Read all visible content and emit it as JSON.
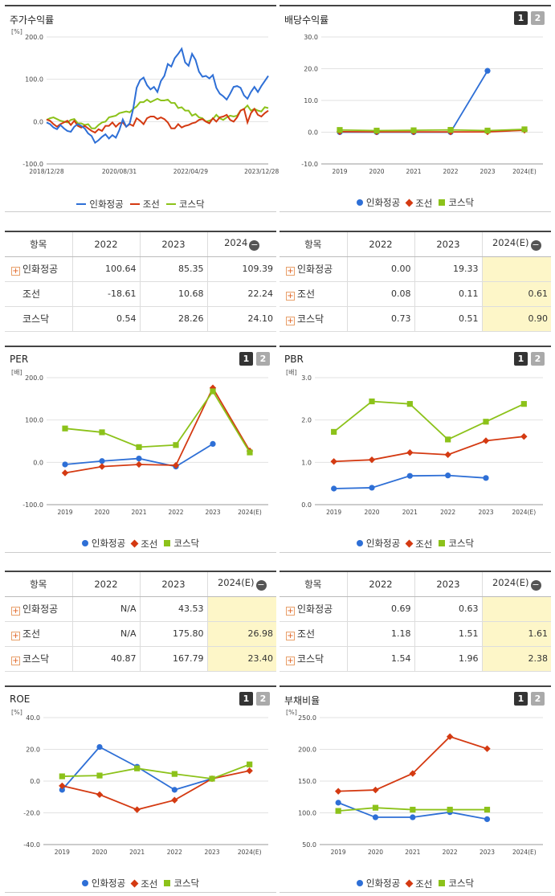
{
  "colors": {
    "blue": "#2e6fd6",
    "red": "#d43a12",
    "green": "#8cc21a"
  },
  "legend": [
    "인화정공",
    "조선",
    "코스닥"
  ],
  "paging": [
    "1",
    "2"
  ],
  "charts": {
    "stock": {
      "title": "주가수익률",
      "chart_data": {
        "type": "line",
        "unit": "[%]",
        "ylim": [
          -100,
          200
        ],
        "yticks": [
          "200.0",
          "100.0",
          "0.0",
          "-100.0"
        ],
        "xticks": [
          "2018/12/28",
          "2020/08/31",
          "2022/04/29",
          "2023/12/28"
        ],
        "xtick_pos": [
          0,
          0.328,
          0.65,
          0.97
        ],
        "series": [
          {
            "name": "인화정공",
            "color": "blue",
            "values": [
              -2,
              -6,
              -14,
              -18,
              -8,
              -16,
              -22,
              -24,
              -12,
              -6,
              -10,
              -16,
              -28,
              -34,
              -50,
              -44,
              -36,
              -30,
              -40,
              -32,
              -38,
              -20,
              5,
              -12,
              -4,
              30,
              80,
              98,
              104,
              86,
              76,
              82,
              70,
              96,
              108,
              136,
              130,
              150,
              160,
              172,
              140,
              132,
              160,
              146,
              118,
              106,
              108,
              102,
              110,
              80,
              66,
              60,
              52,
              66,
              82,
              84,
              80,
              62,
              54,
              70,
              82,
              70,
              84,
              96,
              108
            ]
          },
          {
            "name": "조선",
            "color": "red",
            "values": [
              5,
              2,
              -6,
              -12,
              -6,
              -2,
              2,
              -8,
              2,
              -10,
              -14,
              -10,
              -16,
              -22,
              -26,
              -18,
              -22,
              -10,
              -10,
              -2,
              -12,
              -4,
              -2,
              -12,
              -6,
              -10,
              8,
              2,
              -6,
              8,
              12,
              12,
              6,
              10,
              6,
              -2,
              -16,
              -16,
              -6,
              -14,
              -10,
              -8,
              -4,
              -2,
              4,
              6,
              0,
              -4,
              8,
              0,
              10,
              12,
              16,
              4,
              0,
              10,
              26,
              30,
              -2,
              20,
              30,
              16,
              12,
              20,
              26
            ]
          },
          {
            "name": "코스닥",
            "color": "green",
            "values": [
              4,
              8,
              10,
              6,
              2,
              0,
              -2,
              4,
              6,
              -4,
              -4,
              -8,
              -6,
              -16,
              -16,
              -8,
              -2,
              0,
              10,
              12,
              14,
              20,
              22,
              24,
              22,
              30,
              36,
              46,
              46,
              52,
              46,
              50,
              54,
              50,
              50,
              52,
              44,
              44,
              32,
              34,
              26,
              26,
              14,
              18,
              10,
              8,
              0,
              2,
              6,
              16,
              8,
              4,
              10,
              14,
              12,
              14,
              26,
              30,
              38,
              26,
              30,
              26,
              24,
              34,
              32
            ]
          }
        ]
      }
    },
    "dividend": {
      "title": "배당수익률",
      "chart_data": {
        "type": "line",
        "ylim": [
          -10,
          30
        ],
        "yticks": [
          "30.0",
          "20.0",
          "10.0",
          "0.0",
          "-10.0"
        ],
        "categories": [
          "2019",
          "2020",
          "2021",
          "2022",
          "2023",
          "2024(E)"
        ],
        "series": [
          {
            "name": "인화정공",
            "color": "blue",
            "marker": "circle",
            "values": [
              0.0,
              0.0,
              0.0,
              0.0,
              19.33,
              null
            ]
          },
          {
            "name": "조선",
            "color": "red",
            "marker": "diamond",
            "values": [
              0.15,
              0.1,
              0.1,
              0.08,
              0.11,
              0.61
            ]
          },
          {
            "name": "코스닥",
            "color": "green",
            "marker": "square",
            "values": [
              0.7,
              0.5,
              0.6,
              0.73,
              0.51,
              0.9
            ]
          }
        ]
      }
    },
    "per": {
      "title": "PER",
      "chart_data": {
        "type": "line",
        "unit": "[배]",
        "ylim": [
          -100,
          200
        ],
        "yticks": [
          "200.0",
          "100.0",
          "0.0",
          "-100.0"
        ],
        "categories": [
          "2019",
          "2020",
          "2021",
          "2022",
          "2023",
          "2024(E)"
        ],
        "series": [
          {
            "name": "인화정공",
            "color": "blue",
            "marker": "circle",
            "values": [
              -5,
              3,
              9,
              -10,
              43.53,
              null
            ]
          },
          {
            "name": "조선",
            "color": "red",
            "marker": "diamond",
            "values": [
              -25,
              -10,
              -5,
              -7,
              175.8,
              26.98
            ]
          },
          {
            "name": "코스닥",
            "color": "green",
            "marker": "square",
            "values": [
              80,
              71,
              36,
              40.87,
              167.79,
              23.4
            ]
          }
        ]
      }
    },
    "pbr": {
      "title": "PBR",
      "chart_data": {
        "type": "line",
        "unit": "[배]",
        "ylim": [
          0,
          3
        ],
        "yticks": [
          "3.0",
          "2.0",
          "1.0",
          "0.0"
        ],
        "categories": [
          "2019",
          "2020",
          "2021",
          "2022",
          "2023",
          "2024(E)"
        ],
        "series": [
          {
            "name": "인화정공",
            "color": "blue",
            "marker": "circle",
            "values": [
              0.38,
              0.4,
              0.68,
              0.69,
              0.63,
              null
            ]
          },
          {
            "name": "조선",
            "color": "red",
            "marker": "diamond",
            "values": [
              1.02,
              1.06,
              1.23,
              1.18,
              1.51,
              1.61
            ]
          },
          {
            "name": "코스닥",
            "color": "green",
            "marker": "square",
            "values": [
              1.72,
              2.44,
              2.38,
              1.54,
              1.96,
              2.38
            ]
          }
        ]
      }
    },
    "roe": {
      "title": "ROE",
      "chart_data": {
        "type": "line",
        "unit": "[%]",
        "ylim": [
          -40,
          40
        ],
        "yticks": [
          "40.0",
          "20.0",
          "0.0",
          "-20.0",
          "-40.0"
        ],
        "categories": [
          "2019",
          "2020",
          "2021",
          "2022",
          "2023",
          "2024(E)"
        ],
        "series": [
          {
            "name": "인화정공",
            "color": "blue",
            "marker": "circle",
            "values": [
              -5.5,
              21.5,
              9,
              -5.5,
              1.5,
              null
            ]
          },
          {
            "name": "조선",
            "color": "red",
            "marker": "diamond",
            "values": [
              -3,
              -8.5,
              -18,
              -12,
              1.5,
              6.5
            ]
          },
          {
            "name": "코스닥",
            "color": "green",
            "marker": "square",
            "values": [
              3,
              3.5,
              8,
              4.5,
              1.5,
              10.5
            ]
          }
        ]
      }
    },
    "debt": {
      "title": "부채비율",
      "chart_data": {
        "type": "line",
        "unit": "[%]",
        "ylim": [
          50,
          250
        ],
        "yticks": [
          "250.0",
          "200.0",
          "150.0",
          "100.0",
          "50.0"
        ],
        "categories": [
          "2019",
          "2020",
          "2021",
          "2022",
          "2023",
          "2024(E)"
        ],
        "series": [
          {
            "name": "인화정공",
            "color": "blue",
            "marker": "circle",
            "values": [
              116,
              93,
              93,
              101,
              90,
              null
            ]
          },
          {
            "name": "조선",
            "color": "red",
            "marker": "diamond",
            "values": [
              134,
              136,
              162,
              220,
              201,
              null
            ]
          },
          {
            "name": "코스닥",
            "color": "green",
            "marker": "square",
            "values": [
              103,
              108,
              105,
              105,
              105,
              null
            ]
          }
        ]
      }
    }
  },
  "tables": {
    "stock": {
      "headers": [
        "항목",
        "2022",
        "2023",
        "2024"
      ],
      "rows": [
        {
          "label": "인화정공",
          "plus": true,
          "values": [
            "100.64",
            "85.35",
            "109.39"
          ]
        },
        {
          "label": "조선",
          "plus": false,
          "values": [
            "-18.61",
            "10.68",
            "22.24"
          ]
        },
        {
          "label": "코스닥",
          "plus": false,
          "values": [
            "0.54",
            "28.26",
            "24.10"
          ]
        }
      ]
    },
    "dividend": {
      "headers": [
        "항목",
        "2022",
        "2023",
        "2024(E)"
      ],
      "rows": [
        {
          "label": "인화정공",
          "plus": true,
          "values": [
            "0.00",
            "19.33",
            ""
          ]
        },
        {
          "label": "조선",
          "plus": true,
          "values": [
            "0.08",
            "0.11",
            "0.61"
          ]
        },
        {
          "label": "코스닥",
          "plus": true,
          "values": [
            "0.73",
            "0.51",
            "0.90"
          ]
        }
      ]
    },
    "per": {
      "headers": [
        "항목",
        "2022",
        "2023",
        "2024(E)"
      ],
      "rows": [
        {
          "label": "인화정공",
          "plus": true,
          "values": [
            "N/A",
            "43.53",
            ""
          ]
        },
        {
          "label": "조선",
          "plus": true,
          "values": [
            "N/A",
            "175.80",
            "26.98"
          ]
        },
        {
          "label": "코스닥",
          "plus": true,
          "values": [
            "40.87",
            "167.79",
            "23.40"
          ]
        }
      ]
    },
    "pbr": {
      "headers": [
        "항목",
        "2022",
        "2023",
        "2024(E)"
      ],
      "rows": [
        {
          "label": "인화정공",
          "plus": true,
          "values": [
            "0.69",
            "0.63",
            ""
          ]
        },
        {
          "label": "조선",
          "plus": true,
          "values": [
            "1.18",
            "1.51",
            "1.61"
          ]
        },
        {
          "label": "코스닥",
          "plus": true,
          "values": [
            "1.54",
            "1.96",
            "2.38"
          ]
        }
      ]
    }
  }
}
